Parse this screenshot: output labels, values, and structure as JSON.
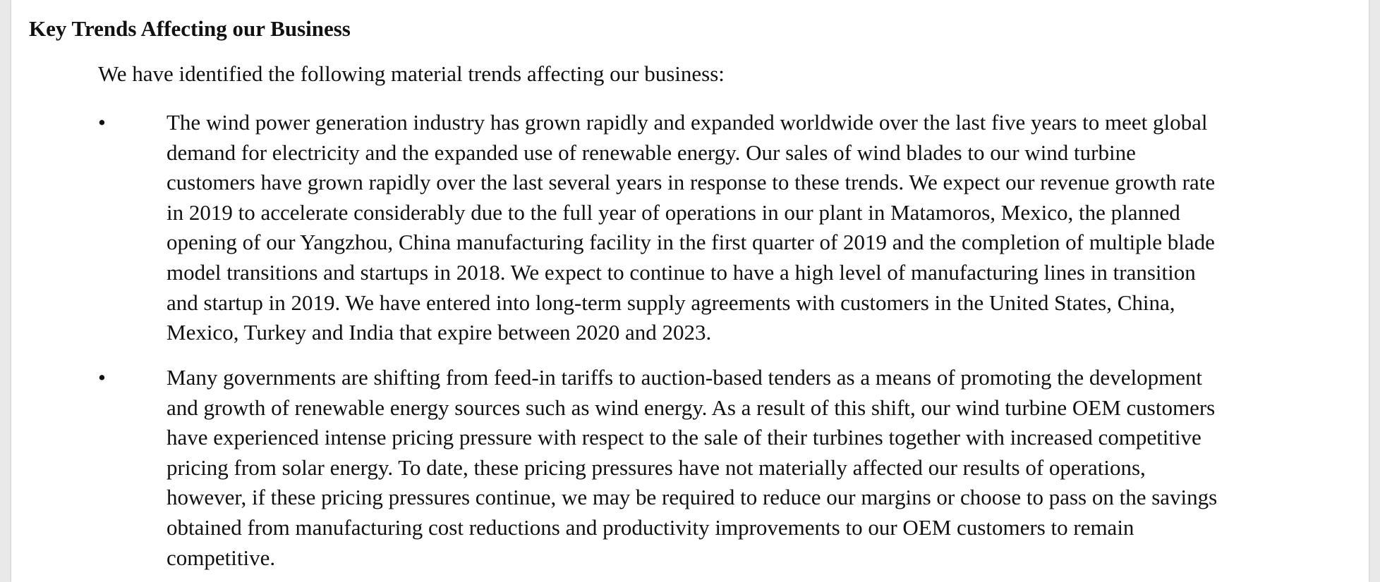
{
  "document": {
    "heading": "Key Trends Affecting our Business",
    "intro": "We have identified the following material trends affecting our business:",
    "bullet_symbol": "•",
    "bullets": [
      {
        "text": "The wind power generation industry has grown rapidly and expanded worldwide over the last five years to meet global\ndemand for electricity and the expanded use of renewable energy. Our sales of wind blades to our wind turbine\ncustomers have grown rapidly over the last several years in response to these trends. We expect our revenue growth rate\nin 2019 to accelerate considerably due to the full year of operations in our plant in Matamoros, Mexico, the planned\nopening of our Yangzhou, China manufacturing facility in the first quarter of 2019 and the completion of multiple blade\nmodel transitions and startups in 2018.  We expect to continue to have a high level of manufacturing lines in transition\nand startup in 2019. We have entered into long-term supply agreements with customers in the United States, China,\nMexico, Turkey and India that expire between 2020 and 2023."
      },
      {
        "text": "Many governments are shifting from feed-in tariffs to auction-based tenders as a means of promoting the development\nand growth of renewable energy sources such as wind energy.  As a result of this shift, our wind turbine OEM customers\nhave experienced intense pricing pressure with respect to the sale of their turbines together with increased competitive\npricing from solar energy.  To date, these pricing pressures have not materially affected our results of operations,\nhowever, if these pricing pressures continue, we may be required to reduce our margins or choose to pass on the savings\nobtained from manufacturing cost reductions and productivity improvements to our OEM customers to remain\ncompetitive."
      }
    ]
  }
}
